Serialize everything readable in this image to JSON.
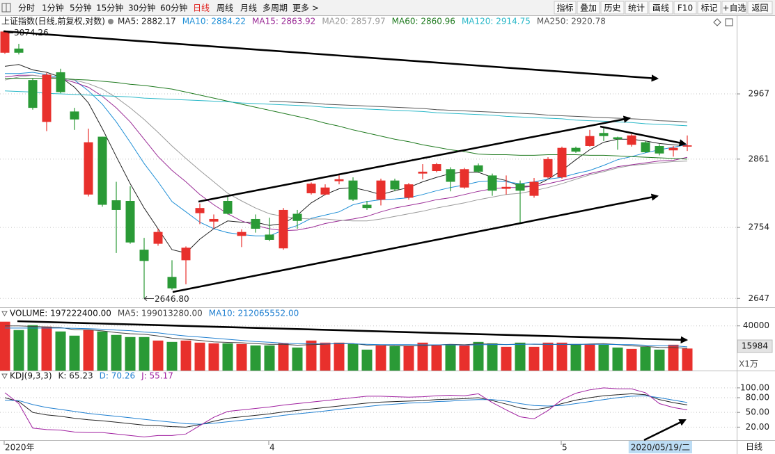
{
  "toolbar": {
    "periods": [
      "分时",
      "1分钟",
      "5分钟",
      "15分钟",
      "30分钟",
      "60分钟",
      "日线",
      "周线",
      "月线",
      "多周期",
      "更多 >"
    ],
    "buttons": [
      "指标",
      "叠加",
      "历史",
      "统计",
      "画线",
      "F10",
      "标记",
      "+自选",
      "返回"
    ]
  },
  "chart_data": [
    {
      "type": "candlestick",
      "title": "上证指数(日线,前复权,对数)",
      "log_scale": true,
      "grid": true,
      "up_color": "#e8302c",
      "down_color": "#2a9a36",
      "ylim": [
        2636,
        3100
      ],
      "yticks": [
        2647,
        2754,
        2861,
        2967
      ],
      "categories": [
        "2020年",
        null,
        null,
        null,
        null,
        null,
        null,
        null,
        null,
        null,
        null,
        null,
        null,
        null,
        null,
        null,
        null,
        null,
        null,
        "4",
        null,
        null,
        null,
        null,
        null,
        null,
        null,
        null,
        null,
        null,
        null,
        null,
        null,
        null,
        null,
        null,
        null,
        null,
        null,
        null,
        "5",
        null,
        null,
        null,
        null,
        null,
        null,
        null,
        null,
        "2020/05/19/二"
      ],
      "period_label": "日线",
      "high_label": "3074.26",
      "low_label": "2646.80",
      "ohlc": {
        "open": [
          3036,
          3043,
          2990,
          2921,
          3003,
          2938,
          2805,
          2897,
          2796,
          2795,
          2720,
          2729,
          2679,
          2704,
          2776,
          2763,
          2795,
          2741,
          2767,
          2743,
          2722,
          2775,
          2807,
          2805,
          2826,
          2827,
          2789,
          2797,
          2827,
          2800,
          2838,
          2842,
          2845,
          2816,
          2851,
          2835,
          2814,
          2822,
          2803,
          2832,
          2832,
          2879,
          2882,
          2903,
          2896,
          2884,
          2888,
          2882,
          2875,
          2881
        ],
        "high": [
          3074.26,
          3051,
          2993,
          3002,
          3009,
          2944,
          2910,
          2897,
          2825,
          2818,
          2738,
          2752,
          2704,
          2725,
          2791,
          2774,
          2802,
          2751,
          2774,
          2769,
          2784,
          2781,
          2824,
          2821,
          2836,
          2832,
          2795,
          2830,
          2830,
          2823,
          2853,
          2855,
          2848,
          2847,
          2854,
          2838,
          2835,
          2827,
          2831,
          2864,
          2881,
          2881,
          2908,
          2911,
          2897,
          2901,
          2890,
          2885,
          2882,
          2899
        ],
        "low": [
          3034,
          3033,
          2941,
          2906,
          2968,
          2908,
          2802,
          2786,
          2715,
          2729,
          2646.8,
          2726,
          2660,
          2668,
          2759,
          2752,
          2774,
          2724,
          2746,
          2733,
          2720,
          2752,
          2805,
          2804,
          2821,
          2795,
          2781,
          2788,
          2810,
          2797,
          2829,
          2840,
          2810,
          2814,
          2839,
          2803,
          2805,
          2760,
          2800,
          2830,
          2830,
          2871,
          2881,
          2890,
          2876,
          2881,
          2871,
          2867,
          2865,
          2874
        ],
        "close": [
          3072,
          3036,
          2944,
          2999,
          2970,
          2925,
          2888,
          2789,
          2781,
          2731,
          2703,
          2747,
          2662,
          2723,
          2784,
          2767,
          2775,
          2747,
          2752,
          2735,
          2781,
          2764,
          2822,
          2816,
          2829,
          2797,
          2784,
          2827,
          2813,
          2821,
          2841,
          2853,
          2825,
          2845,
          2841,
          2811,
          2817,
          2811,
          2825,
          2861,
          2879,
          2873,
          2898,
          2898,
          2893,
          2899,
          2872,
          2870,
          2879,
          2883
        ]
      },
      "series": [
        {
          "label": "MA5: 2882.17",
          "color": "#222222",
          "values": [
            3013,
            3016,
            3007,
            3003,
            2995,
            2978,
            2952,
            2910,
            2865,
            2822,
            2784,
            2752,
            2720,
            2715,
            2736,
            2752,
            2764,
            2762,
            2762,
            2757,
            2760,
            2773,
            2792,
            2805,
            2814,
            2816,
            2811,
            2805,
            2811,
            2816,
            2825,
            2832,
            2838,
            2840,
            2840,
            2832,
            2827,
            2818,
            2818,
            2829,
            2843,
            2860,
            2876,
            2888,
            2893,
            2893,
            2890,
            2886,
            2884,
            2882.17
          ]
        },
        {
          "label": "MA10: 2884.22",
          "color": "#1f8fd6",
          "values": [
            3001,
            3001,
            3003,
            2999,
            2993,
            2990,
            2972,
            2950,
            2921,
            2888,
            2854,
            2825,
            2794,
            2778,
            2762,
            2752,
            2746,
            2743,
            2741,
            2741,
            2750,
            2757,
            2768,
            2773,
            2778,
            2789,
            2794,
            2797,
            2798,
            2800,
            2805,
            2811,
            2816,
            2820,
            2825,
            2827,
            2825,
            2822,
            2825,
            2829,
            2832,
            2838,
            2843,
            2851,
            2860,
            2865,
            2871,
            2876,
            2880,
            2884.22
          ]
        },
        {
          "label": "MA15: 2863.92",
          "color": "#9a2a96",
          "values": [
            2995,
            2998,
            2998,
            2995,
            2993,
            2986,
            2978,
            2963,
            2944,
            2921,
            2893,
            2865,
            2843,
            2825,
            2805,
            2789,
            2775,
            2764,
            2757,
            2752,
            2749,
            2750,
            2754,
            2760,
            2764,
            2767,
            2771,
            2778,
            2784,
            2788,
            2792,
            2797,
            2800,
            2805,
            2810,
            2814,
            2816,
            2816,
            2818,
            2822,
            2827,
            2832,
            2838,
            2843,
            2849,
            2852,
            2855,
            2858,
            2859,
            2863.92
          ]
        },
        {
          "label": "MA20: 2857.97",
          "color": "#999999",
          "values": [
            2990,
            2995,
            2998,
            2995,
            2993,
            2990,
            2984,
            2975,
            2961,
            2944,
            2925,
            2904,
            2882,
            2862,
            2843,
            2825,
            2807,
            2795,
            2784,
            2775,
            2771,
            2768,
            2767,
            2767,
            2765,
            2764,
            2764,
            2767,
            2771,
            2775,
            2779,
            2784,
            2788,
            2792,
            2797,
            2801,
            2805,
            2807,
            2811,
            2816,
            2822,
            2829,
            2836,
            2841,
            2847,
            2851,
            2853,
            2855,
            2857,
            2857.97
          ]
        },
        {
          "label": "MA60: 2860.96",
          "color": "#1f7a1f",
          "values": [
            2993,
            2993,
            2993,
            2993,
            2993,
            2991,
            2990,
            2988,
            2986,
            2983,
            2981,
            2978,
            2975,
            2970,
            2965,
            2960,
            2955,
            2950,
            2945,
            2940,
            2935,
            2930,
            2925,
            2919,
            2914,
            2908,
            2903,
            2898,
            2893,
            2889,
            2884,
            2880,
            2876,
            2873,
            2869,
            2868,
            2868,
            2867,
            2867,
            2868,
            2868,
            2868,
            2867,
            2867,
            2866,
            2865,
            2864,
            2863,
            2862,
            2860.96
          ]
        },
        {
          "label": "MA120: 2914.75",
          "color": "#2ab8c8",
          "values": [
            2972,
            2971,
            2970,
            2968,
            2967,
            2966,
            2965,
            2964,
            2963,
            2962,
            2960,
            2959,
            2958,
            2957,
            2956,
            2955,
            2954,
            2952,
            2951,
            2950,
            2949,
            2948,
            2947,
            2945,
            2944,
            2943,
            2942,
            2941,
            2940,
            2939,
            2938,
            2936,
            2935,
            2934,
            2933,
            2932,
            2930,
            2929,
            2928,
            2927,
            2926,
            2924,
            2923,
            2922,
            2921,
            2920,
            2918,
            2917,
            2916,
            2914.75
          ]
        },
        {
          "label": "MA250: 2920.78",
          "color": "#555555",
          "values": [
            null,
            null,
            null,
            null,
            null,
            null,
            null,
            null,
            null,
            null,
            null,
            null,
            null,
            null,
            null,
            null,
            null,
            null,
            null,
            2955,
            2954,
            2953,
            2952,
            2950,
            2949,
            2948,
            2947,
            2946,
            2945,
            2944,
            2943,
            2941,
            2940,
            2939,
            2938,
            2937,
            2936,
            2935,
            2934,
            2932,
            2931,
            2930,
            2929,
            2928,
            2927,
            2926,
            2925,
            2923,
            2922,
            2920.78
          ]
        }
      ]
    },
    {
      "type": "bar",
      "title": "VOLUME: 197222400.00",
      "grid": true,
      "ylim": [
        0,
        56000
      ],
      "yticks": [
        40000
      ],
      "cursor_label": "15984",
      "unit_label": "X1万",
      "values": [
        43750,
        36250,
        40625,
        39375,
        35000,
        31250,
        36250,
        35000,
        31875,
        30000,
        30000,
        26875,
        25625,
        26875,
        25000,
        24375,
        24375,
        23750,
        22500,
        22500,
        24375,
        20625,
        26875,
        25000,
        25000,
        23750,
        18750,
        22500,
        21875,
        21875,
        25000,
        23125,
        23125,
        22500,
        25625,
        24375,
        21250,
        25000,
        21250,
        25000,
        25000,
        23750,
        23750,
        23125,
        20625,
        19375,
        21250,
        18750,
        23125,
        19722.24
      ],
      "series": [
        {
          "label": "MA5: 199013280.00",
          "color": "#444444",
          "values": [
            40000,
            40000,
            39500,
            39000,
            38500,
            36500,
            36500,
            35500,
            34000,
            33000,
            32500,
            31000,
            29000,
            28000,
            27000,
            25700,
            25200,
            24900,
            24100,
            23500,
            23500,
            22700,
            23200,
            23600,
            24400,
            24200,
            22800,
            23000,
            22400,
            22100,
            22300,
            22900,
            23500,
            23100,
            23900,
            23700,
            23300,
            23700,
            23500,
            23400,
            23400,
            23200,
            23800,
            24100,
            23300,
            22100,
            21600,
            20700,
            20600,
            19901.328
          ]
        },
        {
          "label": "MA10: 212065552.00",
          "color": "#1f7fd0",
          "values": [
            38000,
            38000,
            38000,
            38000,
            38000,
            37800,
            37500,
            37000,
            36200,
            35700,
            34500,
            33700,
            32200,
            31000,
            30000,
            29000,
            28000,
            27000,
            26000,
            25300,
            24500,
            24000,
            24000,
            23800,
            24000,
            24000,
            23500,
            23200,
            23200,
            23200,
            23000,
            23000,
            23000,
            22800,
            23100,
            23300,
            23300,
            23400,
            23700,
            23500,
            23500,
            23500,
            23500,
            23500,
            23300,
            23200,
            22700,
            22300,
            22200,
            21206.5552
          ]
        }
      ]
    },
    {
      "type": "line",
      "title": "KDJ(9,3,3)",
      "grid": true,
      "ylim": [
        -5,
        131
      ],
      "yticks": [
        {
          "value": 20,
          "label": "20.00"
        },
        {
          "value": 50,
          "label": "50.00"
        },
        {
          "value": 80,
          "label": "80.00"
        },
        {
          "value": 100,
          "label": "100.00"
        }
      ],
      "series": [
        {
          "label": "K: 65.23",
          "color": "#222222",
          "values": [
            80,
            72,
            50,
            45,
            42,
            38,
            35,
            33,
            30,
            27,
            24,
            23,
            21,
            20,
            25,
            32,
            38,
            41,
            44,
            47,
            51,
            54,
            57,
            60,
            63,
            66,
            69,
            71,
            72,
            73,
            74,
            76,
            77,
            78,
            80,
            74,
            67,
            59,
            55,
            60,
            68,
            75,
            80,
            84,
            86,
            88,
            86,
            76,
            70,
            65.23
          ]
        },
        {
          "label": "D: 70.26",
          "color": "#1f7fd0",
          "values": [
            75,
            74,
            66,
            60,
            56,
            52,
            48,
            45,
            42,
            39,
            36,
            33,
            30,
            27,
            26,
            28,
            31,
            34,
            37,
            40,
            44,
            47,
            50,
            53,
            56,
            59,
            62,
            65,
            67,
            69,
            70,
            72,
            73,
            75,
            76,
            76,
            73,
            68,
            64,
            63,
            64,
            68,
            72,
            76,
            80,
            83,
            84,
            80,
            75,
            70.26
          ]
        },
        {
          "label": "J: 55.17",
          "color": "#a020a0",
          "values": [
            90,
            68,
            18,
            15,
            14,
            10,
            9,
            9,
            6,
            3,
            0,
            3,
            3,
            6,
            23,
            40,
            52,
            55,
            58,
            61,
            65,
            68,
            71,
            74,
            77,
            80,
            83,
            83,
            82,
            81,
            82,
            84,
            85,
            84,
            88,
            70,
            55,
            41,
            37,
            54,
            76,
            89,
            96,
            100,
            98,
            98,
            90,
            68,
            60,
            55.17
          ]
        }
      ]
    }
  ]
}
